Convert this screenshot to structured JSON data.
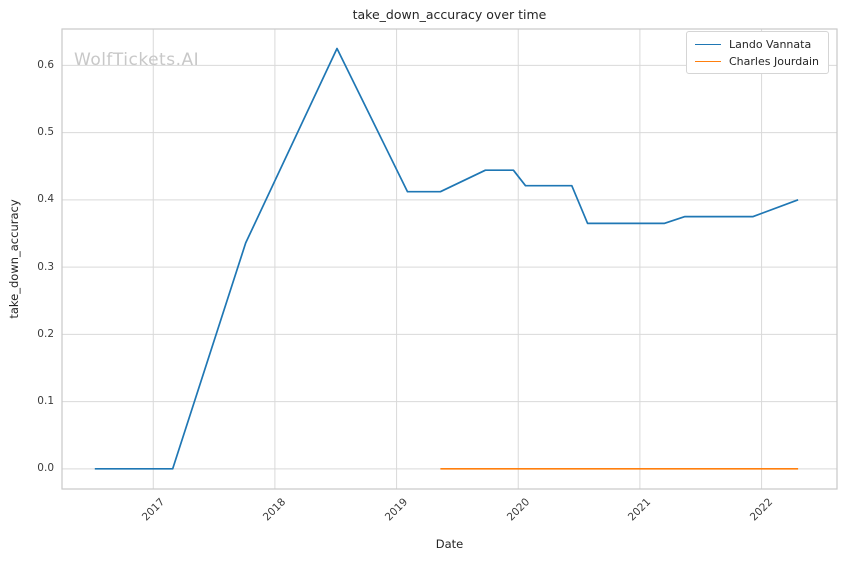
{
  "watermark": "WolfTickets.AI",
  "colors": {
    "grid": "#d9d9d9",
    "spine": "#c9c9c9",
    "text": "#262626",
    "tick_text": "#3b3b3b",
    "watermark": "#c8c8c8",
    "series_blue": "#1f77b4",
    "series_orange": "#ff7f0e"
  },
  "chart_data": {
    "type": "line",
    "title": "take_down_accuracy over time",
    "xlabel": "Date",
    "ylabel": "take_down_accuracy",
    "grid": true,
    "legend_position": "upper right",
    "xlim": [
      2016.25,
      2022.62
    ],
    "ylim": [
      -0.03,
      0.654
    ],
    "x_tick_values": [
      2017,
      2018,
      2019,
      2020,
      2021,
      2022
    ],
    "x_tick_labels": [
      "2017",
      "2018",
      "2019",
      "2020",
      "2021",
      "2022"
    ],
    "y_tick_values": [
      0.0,
      0.1,
      0.2,
      0.3,
      0.4,
      0.5,
      0.6
    ],
    "y_tick_labels": [
      "0.0",
      "0.1",
      "0.2",
      "0.3",
      "0.4",
      "0.5",
      "0.6"
    ],
    "series": [
      {
        "name": "Lando Vannata",
        "color": "#1f77b4",
        "points": [
          [
            2016.52,
            0.0
          ],
          [
            2017.16,
            0.0
          ],
          [
            2017.76,
            0.336
          ],
          [
            2018.51,
            0.625
          ],
          [
            2019.09,
            0.412
          ],
          [
            2019.36,
            0.412
          ],
          [
            2019.73,
            0.444
          ],
          [
            2019.96,
            0.444
          ],
          [
            2020.06,
            0.421
          ],
          [
            2020.44,
            0.421
          ],
          [
            2020.57,
            0.365
          ],
          [
            2021.2,
            0.365
          ],
          [
            2021.37,
            0.375
          ],
          [
            2021.93,
            0.375
          ],
          [
            2022.3,
            0.4
          ]
        ]
      },
      {
        "name": "Charles Jourdain",
        "color": "#ff7f0e",
        "points": [
          [
            2019.36,
            0.0
          ],
          [
            2022.3,
            0.0
          ]
        ]
      }
    ]
  }
}
